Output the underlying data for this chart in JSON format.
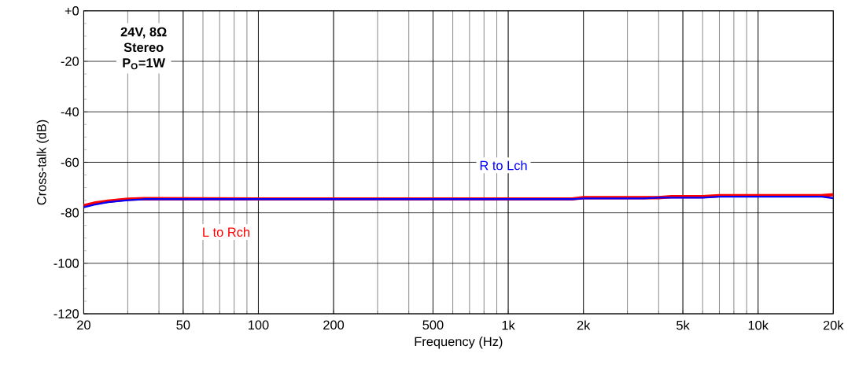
{
  "chart_data": {
    "type": "line",
    "xlabel": "Frequency (Hz)",
    "ylabel": "Cross-talk (dB)",
    "log": "x",
    "grid": true,
    "marker": "none",
    "line_style": "solid",
    "xlim": [
      20,
      20000
    ],
    "ylim": [
      -120,
      0
    ],
    "xticks": [
      20,
      50,
      100,
      200,
      500,
      {
        "value": 1000,
        "label": "1k"
      },
      {
        "value": 2000,
        "label": "2k"
      },
      {
        "value": 5000,
        "label": "5k"
      },
      {
        "value": 10000,
        "label": "10k"
      },
      {
        "value": 20000,
        "label": "20k"
      }
    ],
    "yticks": [
      {
        "value": 0,
        "label": "+0"
      },
      -20,
      -40,
      -60,
      -80,
      -100,
      -120
    ],
    "annotations": [
      "**24V, 8Ω**",
      "**Stereo**",
      "**P$_{O}$=1W**"
    ],
    "series": [
      {
        "name": "L to Rch",
        "color": "#ff0000",
        "x": [
          20,
          22,
          25,
          30,
          35,
          100,
          1800,
          2000,
          4000,
          4500,
          6000,
          7000,
          18000,
          20000
        ],
        "values": [
          -77.2,
          -76.2,
          -75.4,
          -74.6,
          -74.4,
          -74.5,
          -74.5,
          -74,
          -74,
          -73.6,
          -73.6,
          -73.2,
          -73.2,
          -72.8
        ]
      },
      {
        "name": "R to Lch",
        "color": "#0000ff",
        "x": [
          20,
          22,
          25,
          30,
          35,
          100,
          1800,
          2000,
          3500,
          4000,
          6000,
          7000,
          18000,
          20000
        ],
        "values": [
          -77.8,
          -76.8,
          -75.8,
          -75,
          -74.6,
          -74.6,
          -74.6,
          -74.3,
          -74.3,
          -74,
          -74,
          -73.6,
          -73.6,
          -74.2
        ]
      }
    ]
  }
}
